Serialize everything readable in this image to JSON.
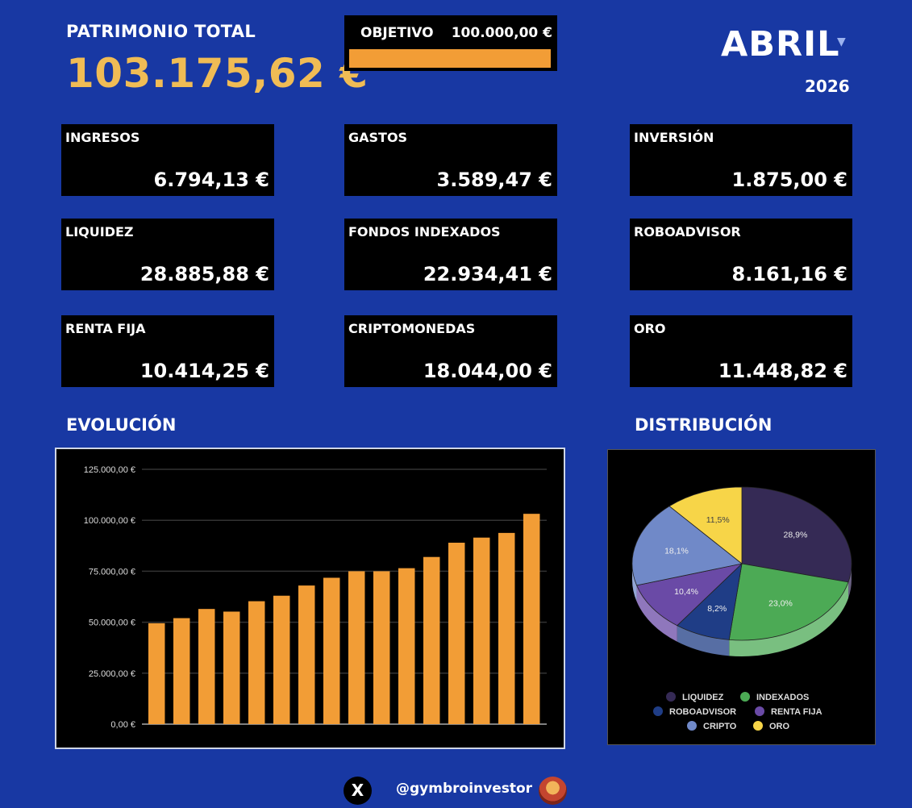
{
  "header": {
    "patrimonio_label": "PATRIMONIO TOTAL",
    "patrimonio_value": "103.175,62 €",
    "objetivo_label": "OBJETIVO",
    "objetivo_value": "100.000,00 €",
    "objetivo_progress": 1.0,
    "month": "ABRIL",
    "year": "2026"
  },
  "cards": [
    {
      "label": "INGRESOS",
      "value": "6.794,13 €"
    },
    {
      "label": "GASTOS",
      "value": "3.589,47 €"
    },
    {
      "label": "INVERSIÓN",
      "value": "1.875,00 €"
    },
    {
      "label": "LIQUIDEZ",
      "value": "28.885,88 €"
    },
    {
      "label": "FONDOS INDEXADOS",
      "value": "22.934,41 €"
    },
    {
      "label": "ROBOADVISOR",
      "value": "8.161,16 €"
    },
    {
      "label": "RENTA FIJA",
      "value": "10.414,25 €"
    },
    {
      "label": "CRIPTOMONEDAS",
      "value": "18.044,00 €"
    },
    {
      "label": "ORO",
      "value": "11.448,82 €"
    }
  ],
  "sections": {
    "evolucion": "EVOLUCIÓN",
    "distribucion": "DISTRIBUCIÓN"
  },
  "footer": {
    "x_icon": "X",
    "handle": "@gymbroinvestor"
  },
  "colors": {
    "background": "#1838a3",
    "bar": "#f29d36",
    "accent": "#f0bc55"
  },
  "chart_data": [
    {
      "type": "bar",
      "categories": [
        "",
        "",
        "",
        "",
        "",
        "",
        "",
        "",
        "",
        "",
        "",
        "",
        "",
        "",
        "",
        ""
      ],
      "values": [
        49500,
        52000,
        56500,
        55200,
        60300,
        63000,
        68000,
        71800,
        75000,
        75000,
        76500,
        82000,
        89000,
        91500,
        93800,
        103175.62
      ],
      "ylim": [
        0,
        125000
      ],
      "yticks": [
        {
          "value": 0,
          "label": "0,00 €"
        },
        {
          "value": 25000,
          "label": "25.000,00 €"
        },
        {
          "value": 50000,
          "label": "50.000,00 €"
        },
        {
          "value": 75000,
          "label": "75.000,00 €"
        },
        {
          "value": 100000,
          "label": "100.000,00 €"
        },
        {
          "value": 125000,
          "label": "125.000,00 €"
        }
      ],
      "grid": true
    },
    {
      "type": "pie",
      "slices": [
        {
          "name": "LIQUIDEZ",
          "value": 28.9,
          "label": "28,9%",
          "color": "#352a55"
        },
        {
          "name": "INDEXADOS",
          "value": 23.0,
          "label": "23,0%",
          "color": "#4caa55"
        },
        {
          "name": "ROBOADVISOR",
          "value": 8.2,
          "label": "8,2%",
          "color": "#1f3d86"
        },
        {
          "name": "RENTA FIJA",
          "value": 10.4,
          "label": "10,4%",
          "color": "#6a4aa6"
        },
        {
          "name": "CRIPTO",
          "value": 18.1,
          "label": "18,1%",
          "color": "#7089c8"
        },
        {
          "name": "ORO",
          "value": 11.5,
          "label": "11,5%",
          "color": "#f7d548"
        }
      ],
      "legend_position": "bottom"
    }
  ]
}
